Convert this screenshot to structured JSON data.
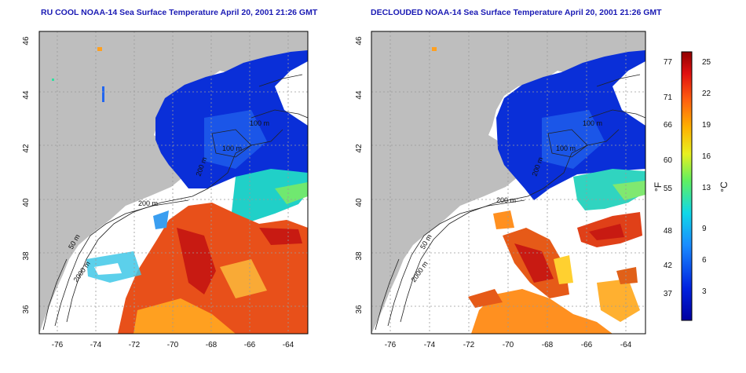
{
  "titles": {
    "left": "RU COOL NOAA-14 Sea Surface Temperature April 20, 2001 21:26 GMT",
    "right": "DECLOUDED NOAA-14 Sea Surface Temperature April 20, 2001 21:26 GMT"
  },
  "axes": {
    "lat_ticks": [
      "36",
      "38",
      "40",
      "42",
      "44",
      "46"
    ],
    "lon_ticks": [
      "-76",
      "-74",
      "-72",
      "-70",
      "-68",
      "-66",
      "-64"
    ]
  },
  "contours": {
    "left": [
      "200 m",
      "50 m",
      "2000 m",
      "100 m",
      "100 m",
      "200 m"
    ],
    "right": [
      "200 m",
      "50 m",
      "2000 m",
      "100 m",
      "100 m",
      "200 m"
    ]
  },
  "colorbar": {
    "f_ticks": [
      "77",
      "71",
      "66",
      "60",
      "55",
      "48",
      "42",
      "37"
    ],
    "c_ticks": [
      "25",
      "22",
      "19",
      "16",
      "13",
      "9",
      "6",
      "3"
    ],
    "f_label": "°F",
    "c_label": "°C"
  },
  "colors": {
    "title": "#1a1ab4",
    "land": "#bebebe",
    "cold": "#0a2fd8",
    "warm": "#e03a10"
  }
}
